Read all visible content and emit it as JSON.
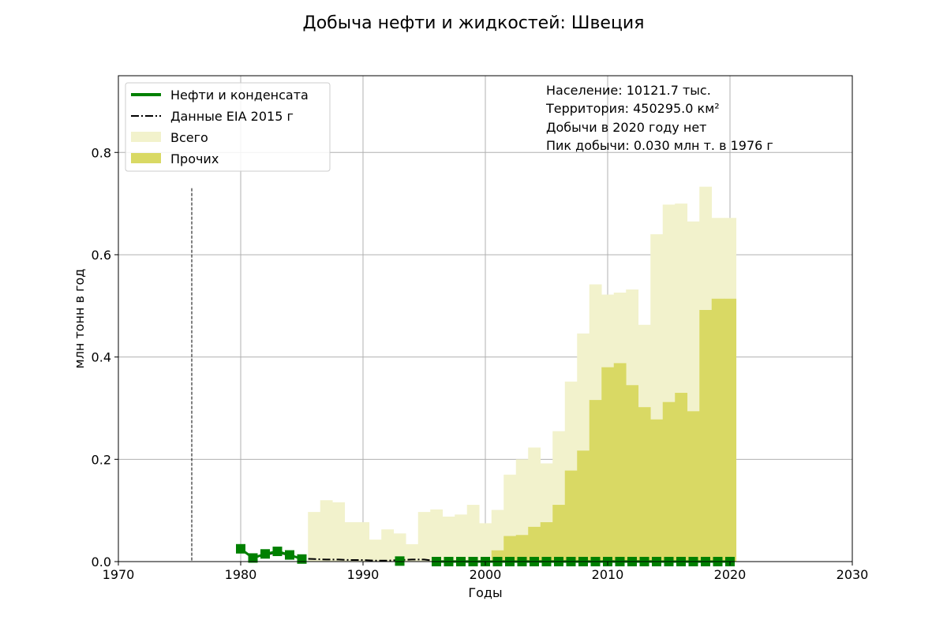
{
  "chart_data": {
    "type": "bar",
    "title": "Добыча нефти и жидкостей: Швеция",
    "xlabel": "Годы",
    "ylabel": "млн тонн в год",
    "xlim": [
      1970,
      2030
    ],
    "ylim": [
      0,
      0.95
    ],
    "xticks": [
      "1970",
      "1980",
      "1990",
      "2000",
      "2010",
      "2020",
      "2030"
    ],
    "yticks": [
      "0.0",
      "0.2",
      "0.4",
      "0.6",
      "0.8"
    ],
    "grid": true,
    "legend_position": "top-left",
    "legend": {
      "oil": "Нефти и конденсата",
      "eia": "Данные EIA 2015 г",
      "total": "Всего",
      "other": "Прочих"
    },
    "annotations": [
      "Население: 10121.7 тыс.",
      "Территория: 450295.0 км²",
      "Добычи в 2020 году нет",
      "Пик добычи: 0.030 млн т. в 1976 г"
    ],
    "peak_marker_year": 1976,
    "peak_marker_top": 0.73,
    "colors": {
      "oil": "#008000",
      "eia": "#000000",
      "total": "#f2f2cc",
      "other": "#d9d964",
      "grid": "#b0b0b0"
    },
    "series": {
      "total": {
        "name": "Всего",
        "x": [
          1986,
          1987,
          1988,
          1989,
          1990,
          1991,
          1992,
          1993,
          1994,
          1995,
          1996,
          1997,
          1998,
          1999,
          2000,
          2001,
          2002,
          2003,
          2004,
          2005,
          2006,
          2007,
          2008,
          2009,
          2010,
          2011,
          2012,
          2013,
          2014,
          2015,
          2016,
          2017,
          2018,
          2019,
          2020
        ],
        "values": [
          0.097,
          0.12,
          0.116,
          0.077,
          0.077,
          0.043,
          0.063,
          0.055,
          0.034,
          0.097,
          0.102,
          0.088,
          0.092,
          0.111,
          0.075,
          0.101,
          0.17,
          0.2,
          0.223,
          0.192,
          0.255,
          0.352,
          0.446,
          0.542,
          0.522,
          0.526,
          0.532,
          0.463,
          0.64,
          0.698,
          0.7,
          0.665,
          0.733,
          0.672,
          0.672
        ]
      },
      "other": {
        "name": "Прочих",
        "x": [
          2001,
          2002,
          2003,
          2004,
          2005,
          2006,
          2007,
          2008,
          2009,
          2010,
          2011,
          2012,
          2013,
          2014,
          2015,
          2016,
          2017,
          2018,
          2019,
          2020
        ],
        "values": [
          0.022,
          0.05,
          0.052,
          0.068,
          0.077,
          0.111,
          0.178,
          0.217,
          0.316,
          0.38,
          0.388,
          0.345,
          0.302,
          0.278,
          0.312,
          0.33,
          0.294,
          0.492,
          0.514,
          0.514
        ]
      },
      "oil": {
        "name": "Нефти и конденсата",
        "x": [
          1980,
          1981,
          1982,
          1983,
          1984,
          1985,
          1993,
          1996,
          1997,
          1998,
          1999,
          2000,
          2001,
          2002,
          2003,
          2004,
          2005,
          2006,
          2007,
          2008,
          2009,
          2010,
          2011,
          2012,
          2013,
          2014,
          2015,
          2016,
          2017,
          2018,
          2019,
          2020
        ],
        "values": [
          0.025,
          0.007,
          0.015,
          0.02,
          0.013,
          0.005,
          0.001,
          0.0,
          0.0,
          0.0,
          0.0,
          0.0,
          0.0,
          0.0,
          0.0,
          0.0,
          0.0,
          0.0,
          0.0,
          0.0,
          0.0,
          0.0,
          0.0,
          0.0,
          0.0,
          0.0,
          0.0,
          0.0,
          0.0,
          0.0,
          0.0,
          0.0
        ]
      },
      "eia": {
        "name": "Данные EIA 2015 г",
        "x": [
          1980,
          1981,
          1982,
          1983,
          1984,
          1985,
          1986,
          1987,
          1988,
          1989,
          1990,
          1991,
          1992,
          1993,
          1994,
          1995,
          1996,
          1997,
          1998,
          1999,
          2000,
          2001,
          2002,
          2003,
          2004,
          2005,
          2006,
          2007,
          2008,
          2009,
          2010,
          2011,
          2012,
          2013,
          2014
        ],
        "values": [
          0.023,
          0.008,
          0.013,
          0.018,
          0.012,
          0.006,
          0.005,
          0.004,
          0.004,
          0.003,
          0.003,
          0.002,
          0.002,
          0.003,
          0.004,
          0.004,
          0.001,
          0.001,
          0.001,
          0.001,
          0.001,
          0.001,
          0.001,
          0.001,
          0.001,
          0.001,
          0.001,
          0.001,
          0.001,
          0.001,
          0.001,
          0.001,
          0.001,
          0.001,
          0.001
        ]
      }
    }
  }
}
